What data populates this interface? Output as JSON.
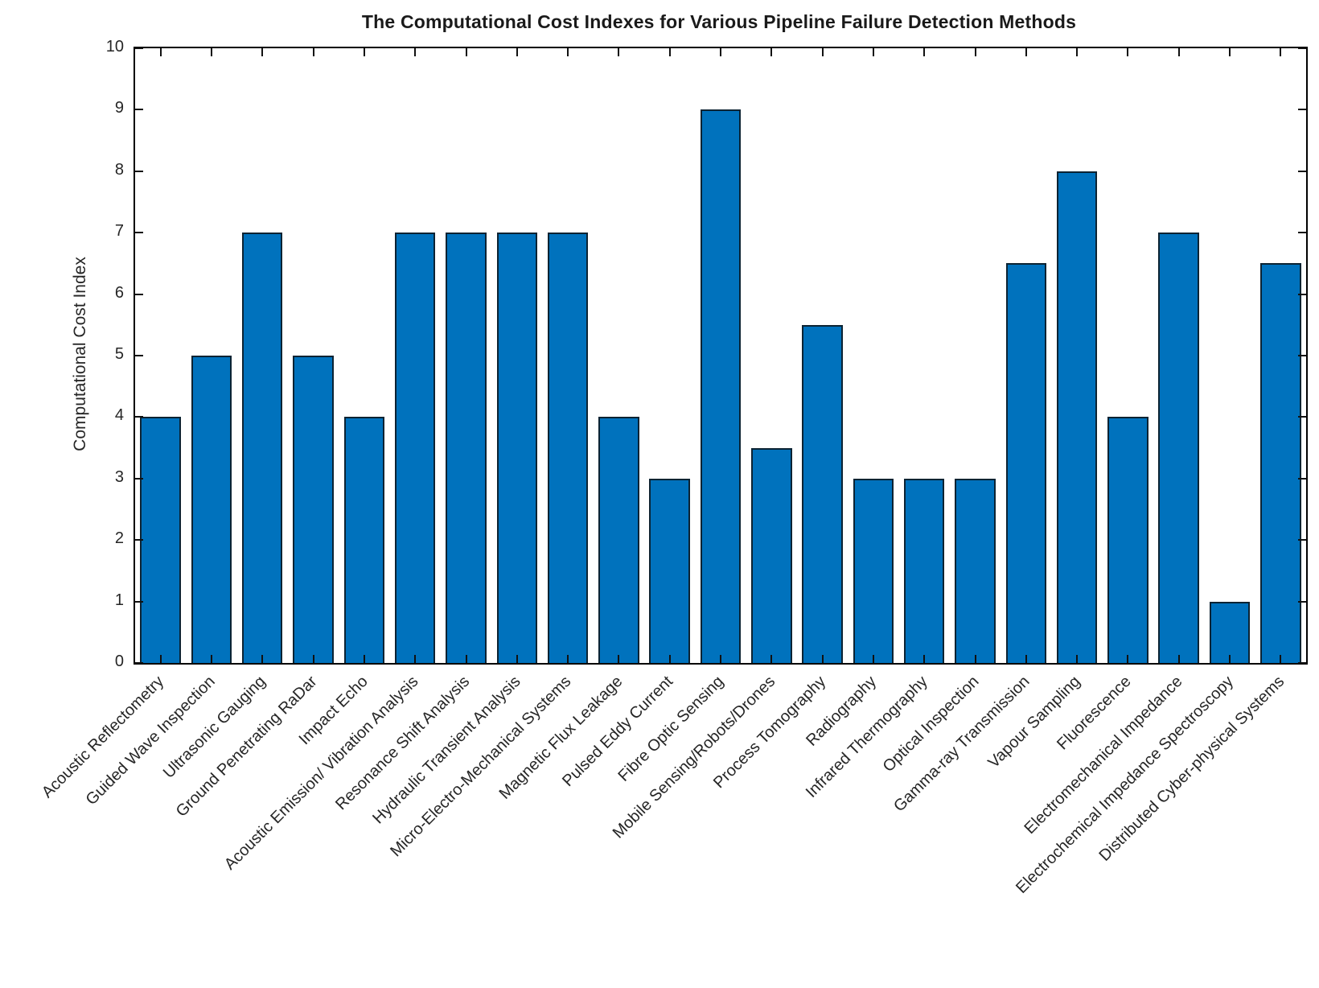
{
  "chart_data": {
    "type": "bar",
    "title": "The Computational Cost Indexes for Various Pipeline Failure Detection Methods",
    "xlabel": "",
    "ylabel": "Computational Cost Index",
    "ylim": [
      0,
      10
    ],
    "yticks": [
      0,
      1,
      2,
      3,
      4,
      5,
      6,
      7,
      8,
      9,
      10
    ],
    "grid": false,
    "legend": "none",
    "bar_width_fraction": 0.8,
    "bar_color": "#0072BD",
    "bar_edge_color": "#0c2333",
    "axis_color": "#000000",
    "text_color": "#262626",
    "categories": [
      "Acoustic Reflectometry",
      "Guided Wave Inspection",
      "Ultrasonic Gauging",
      "Ground Penetrating RaDar",
      "Impact Echo",
      "Acoustic Emission/ Vibration Analysis",
      "Resonance Shift Analysis",
      "Hydraulic Transient Analysis",
      "Micro-Electro-Mechanical Systems",
      "Magnetic Flux Leakage",
      "Pulsed Eddy Current",
      "Fibre Optic Sensing",
      "Mobile Sensing/Robots/Drones",
      "Process Tomography",
      "Radiography",
      "Infrared Thermography",
      "Optical Inspection",
      "Gamma-ray Transmission",
      "Vapour Sampling",
      "Fluorescence",
      "Electromechanical Impedance",
      "Electrochemical Impedance Spectroscopy",
      "Distributed Cyber-physical Systems"
    ],
    "values": [
      4,
      5,
      7,
      5,
      4,
      7,
      7,
      7,
      7,
      4,
      3,
      9,
      3.5,
      5.5,
      3,
      3,
      3,
      6.5,
      8,
      4,
      7,
      1,
      6.5
    ]
  }
}
